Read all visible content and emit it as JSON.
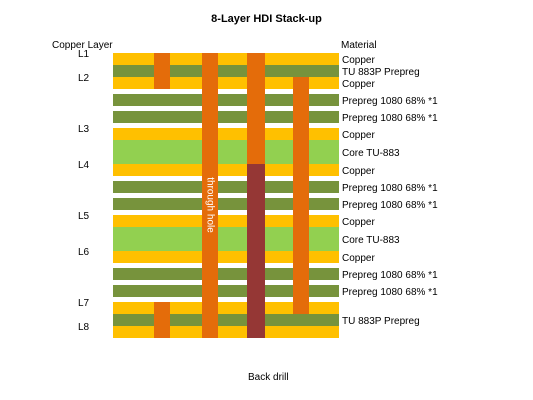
{
  "title": "8-Layer HDI Stack-up",
  "header": {
    "left": "Copper Layer",
    "right": "Material"
  },
  "colors": {
    "copper": "#FFC000",
    "prepreg_tu": "#77933C",
    "prepreg_1080": "#77933C",
    "core": "#92D050",
    "via_orange": "#E46C0A",
    "backdrill": "#953735"
  },
  "layers": [
    {
      "type": "copper",
      "label": "L1",
      "material": "Copper"
    },
    {
      "type": "prepreg_tu",
      "label": "",
      "material": "TU 883P Prepreg"
    },
    {
      "type": "copper",
      "label": "L2",
      "material": "Copper"
    },
    {
      "type": "prepreg_1080",
      "label": "",
      "material": "Prepreg 1080 68% *1"
    },
    {
      "type": "prepreg_1080",
      "label": "",
      "material": "Prepreg 1080 68% *1"
    },
    {
      "type": "copper",
      "label": "L3",
      "material": "Copper"
    },
    {
      "type": "core",
      "label": "",
      "material": "Core TU-883"
    },
    {
      "type": "copper",
      "label": "L4",
      "material": "Copper"
    },
    {
      "type": "prepreg_1080",
      "label": "",
      "material": "Prepreg 1080 68% *1"
    },
    {
      "type": "prepreg_1080",
      "label": "",
      "material": "Prepreg 1080 68% *1"
    },
    {
      "type": "copper",
      "label": "L5",
      "material": "Copper"
    },
    {
      "type": "core",
      "label": "",
      "material": "Core TU-883"
    },
    {
      "type": "copper",
      "label": "L6",
      "material": "Copper"
    },
    {
      "type": "prepreg_1080",
      "label": "",
      "material": "Prepreg 1080 68% *1"
    },
    {
      "type": "prepreg_1080",
      "label": "",
      "material": "Prepreg 1080 68% *1"
    },
    {
      "type": "copper",
      "label": "L7",
      "material": ""
    },
    {
      "type": "prepreg_tu",
      "label": "",
      "material": "TU 883P Prepreg"
    },
    {
      "type": "copper",
      "label": "L8",
      "material": ""
    }
  ],
  "vias": [
    {
      "name": "microvia-top",
      "from": 0,
      "to": 2,
      "color": "via_orange"
    },
    {
      "name": "microvia-bottom",
      "from": 15,
      "to": 17,
      "color": "via_orange"
    },
    {
      "name": "through-hole",
      "from": 0,
      "to": 17,
      "color": "via_orange"
    },
    {
      "name": "buried-via",
      "from": 2,
      "to": 15,
      "color": "via_orange"
    },
    {
      "name": "backdrill-via-top",
      "from": 0,
      "to": 6,
      "color": "via_orange"
    },
    {
      "name": "backdrill",
      "from": 7,
      "to": 17,
      "color": "backdrill"
    }
  ],
  "through_hole_label": "through hole",
  "footer": "Back drill"
}
